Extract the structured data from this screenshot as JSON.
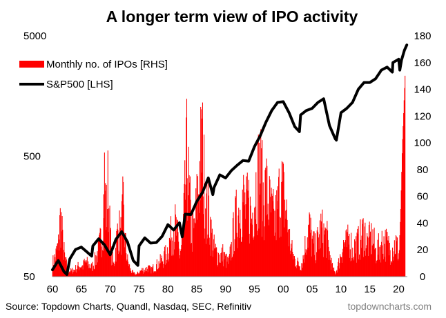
{
  "colors": {
    "ipo": "#ff0000",
    "sp500": "#000000",
    "brand": "#808080"
  },
  "chart_data": {
    "type": "bar",
    "title": "A longer term view of IPO activity",
    "source": "Source: Topdown Charts, Quandl, Nasdaq, SEC, Refinitiv",
    "brand": "topdowncharts.com",
    "grid": false,
    "legend_position": "top-left",
    "x_ticks": [
      "60",
      "65",
      "70",
      "75",
      "80",
      "85",
      "90",
      "95",
      "00",
      "05",
      "10",
      "15",
      "20"
    ],
    "xlim": [
      1960,
      2021.5
    ],
    "y_left": {
      "scale": "log",
      "lim": [
        50,
        5000
      ],
      "ticks": [
        "50",
        "500",
        "5000"
      ]
    },
    "y_right": {
      "scale": "linear",
      "lim": [
        0,
        180
      ],
      "ticks": [
        "0",
        "20",
        "40",
        "60",
        "80",
        "100",
        "120",
        "140",
        "160",
        "180"
      ]
    },
    "series": [
      {
        "name": "Monthly no. of IPOs [RHS]",
        "type": "bar",
        "axis": "right",
        "x": [
          1960,
          1960.5,
          1961,
          1961.4,
          1961.8,
          1962.2,
          1962.7,
          1963.2,
          1963.7,
          1964.2,
          1964.7,
          1965.2,
          1965.7,
          1966.2,
          1966.7,
          1967.2,
          1967.7,
          1968.2,
          1968.7,
          1969.0,
          1969.3,
          1969.6,
          1969.9,
          1970.2,
          1970.6,
          1971.0,
          1971.4,
          1971.8,
          1972.2,
          1972.6,
          1973.0,
          1973.5,
          1974.0,
          1974.5,
          1975.0,
          1975.5,
          1976.0,
          1976.5,
          1977.0,
          1977.5,
          1978.0,
          1978.5,
          1979.0,
          1979.5,
          1980.0,
          1980.5,
          1981.0,
          1981.5,
          1982.0,
          1982.5,
          1983.0,
          1983.3,
          1983.6,
          1984.0,
          1984.5,
          1985.0,
          1985.5,
          1985.9,
          1986.2,
          1986.5,
          1986.8,
          1987.1,
          1987.5,
          1988.0,
          1988.5,
          1989.0,
          1989.5,
          1990.0,
          1990.5,
          1991.0,
          1991.5,
          1992.0,
          1992.5,
          1993.0,
          1993.5,
          1994.0,
          1994.5,
          1995.0,
          1995.5,
          1996.0,
          1996.3,
          1996.6,
          1997.0,
          1997.5,
          1998.0,
          1998.5,
          1999.0,
          1999.5,
          2000.0,
          2000.5,
          2001.0,
          2001.5,
          2002.0,
          2002.5,
          2003.0,
          2003.5,
          2004.0,
          2004.5,
          2005.0,
          2005.5,
          2006.0,
          2006.5,
          2007.0,
          2007.5,
          2008.0,
          2008.5,
          2009.0,
          2009.5,
          2010.0,
          2010.5,
          2011.0,
          2011.5,
          2012.0,
          2012.5,
          2013.0,
          2013.5,
          2014.0,
          2014.5,
          2015.0,
          2015.5,
          2016.0,
          2016.5,
          2017.0,
          2017.5,
          2018.0,
          2018.5,
          2019.0,
          2019.5,
          2020.0,
          2020.3,
          2020.6,
          2020.9,
          2021.1
        ],
        "values": [
          12,
          18,
          28,
          55,
          28,
          14,
          6,
          5,
          6,
          8,
          10,
          9,
          13,
          11,
          8,
          12,
          20,
          28,
          48,
          88,
          55,
          80,
          45,
          20,
          10,
          28,
          45,
          35,
          60,
          30,
          14,
          6,
          3,
          2,
          4,
          6,
          6,
          8,
          6,
          8,
          10,
          12,
          15,
          18,
          25,
          35,
          48,
          40,
          20,
          30,
          75,
          110,
          80,
          45,
          38,
          65,
          95,
          120,
          90,
          70,
          55,
          60,
          38,
          25,
          20,
          18,
          20,
          15,
          12,
          25,
          45,
          55,
          62,
          70,
          58,
          65,
          50,
          75,
          88,
          95,
          80,
          70,
          78,
          65,
          55,
          48,
          60,
          82,
          72,
          58,
          35,
          22,
          15,
          12,
          10,
          18,
          35,
          45,
          30,
          25,
          32,
          42,
          38,
          35,
          20,
          8,
          3,
          10,
          22,
          30,
          28,
          35,
          22,
          28,
          30,
          35,
          42,
          30,
          32,
          35,
          22,
          25,
          30,
          32,
          28,
          25,
          26,
          30,
          20,
          45,
          95,
          130,
          152
        ]
      },
      {
        "name": "S&P500 [LHS]",
        "type": "line",
        "axis": "left",
        "x": [
          1960,
          1961,
          1962,
          1962.5,
          1963,
          1964,
          1965,
          1966,
          1966.8,
          1967,
          1968,
          1969,
          1970,
          1971,
          1972,
          1973,
          1974,
          1974.8,
          1975,
          1976,
          1977,
          1978,
          1979,
          1980,
          1981,
          1982,
          1982.5,
          1983,
          1984,
          1985,
          1986,
          1987,
          1987.8,
          1988,
          1989,
          1990,
          1991,
          1992,
          1993,
          1994,
          1995,
          1996,
          1997,
          1998,
          1999,
          2000,
          2001,
          2002,
          2002.8,
          2003,
          2004,
          2005,
          2006,
          2007,
          2008,
          2009,
          2009.2,
          2010,
          2011,
          2012,
          2013,
          2014,
          2015,
          2016,
          2017,
          2018,
          2018.9,
          2019,
          2020,
          2020.2,
          2020.5,
          2021,
          2021.4
        ],
        "values": [
          57,
          68,
          55,
          52,
          70,
          84,
          88,
          80,
          74,
          90,
          103,
          92,
          76,
          102,
          118,
          97,
          68,
          62,
          90,
          105,
          95,
          96,
          108,
          135,
          122,
          140,
          107,
          165,
          164,
          210,
          250,
          330,
          240,
          275,
          350,
          330,
          380,
          420,
          460,
          455,
          600,
          740,
          960,
          1200,
          1400,
          1420,
          1150,
          880,
          800,
          1100,
          1200,
          1250,
          1400,
          1500,
          900,
          700,
          680,
          1150,
          1250,
          1400,
          1800,
          2050,
          2050,
          2200,
          2600,
          2750,
          2500,
          3000,
          3200,
          2600,
          3150,
          3800,
          4200
        ]
      }
    ]
  }
}
